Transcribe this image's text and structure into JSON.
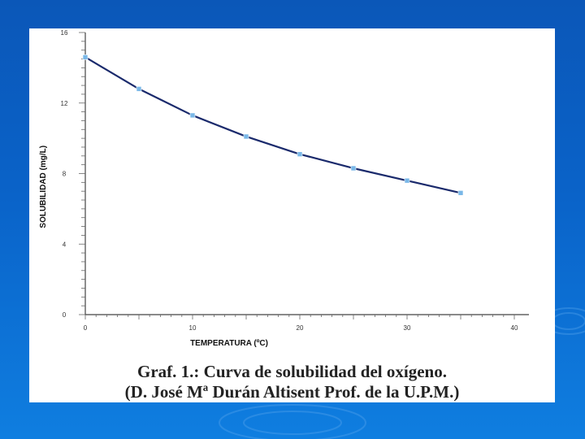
{
  "chart_data": {
    "type": "line",
    "xlabel": "TEMPERATURA (ºC)",
    "ylabel": "SOLUBILIDAD (mg/L)",
    "xlim": [
      0,
      40
    ],
    "ylim": [
      0,
      16
    ],
    "xticks": [
      0,
      10,
      20,
      30,
      40
    ],
    "yticks": [
      0,
      4,
      8,
      12,
      16
    ],
    "grid": false,
    "series": [
      {
        "x": [
          0,
          5,
          10,
          15,
          20,
          25,
          30,
          35
        ],
        "y": [
          14.6,
          12.8,
          11.3,
          10.1,
          9.1,
          8.3,
          7.6,
          6.9
        ]
      }
    ],
    "line_color": "#1a2a6c",
    "marker_color": "#7ab8e8"
  },
  "caption": {
    "line1": "Graf. 1.: Curva de solubilidad del oxígeno.",
    "line2": "(D. José Mª Durán Altisent Prof. de la U.P.M.)"
  }
}
